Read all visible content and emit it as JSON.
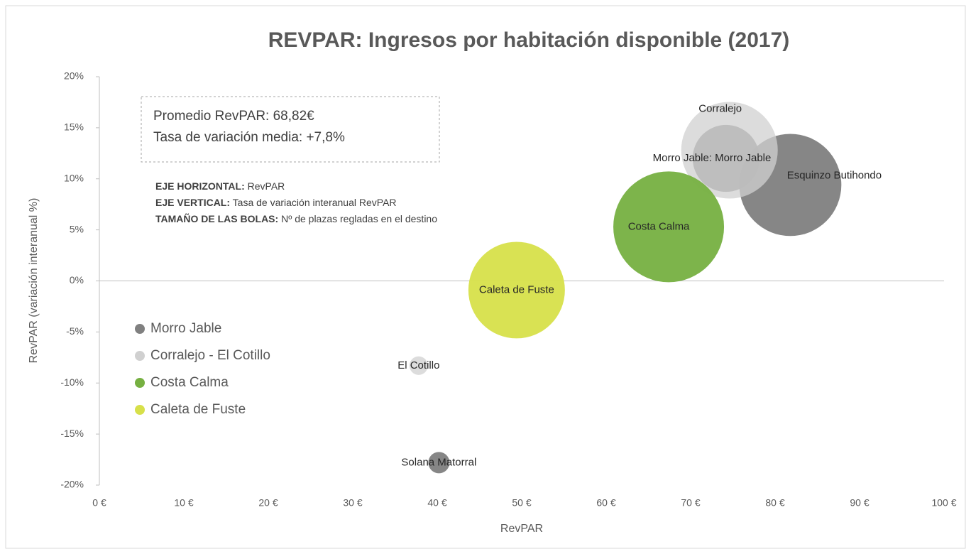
{
  "chart_data": {
    "type": "bubble",
    "title": "REVPAR: Ingresos por habitación disponible (2017)",
    "x_label": "RevPAR",
    "y_label": "RevPAR (variación interanual %)",
    "annotations": [
      "Promedio RevPAR: 68,82€",
      "Tasa de variación media: +7,8%"
    ],
    "notes": [
      {
        "label": "EJE HORIZONTAL:",
        "text": " RevPAR"
      },
      {
        "label": "EJE VERTICAL:",
        "text": " Tasa de variación interanual RevPAR"
      },
      {
        "label": "TAMAÑO DE LAS BOLAS:",
        "text": " Nº de plazas regladas en el destino"
      }
    ],
    "xlim": [
      0,
      100
    ],
    "xticks": [
      {
        "value": 0,
        "label": "0 €"
      },
      {
        "value": 10,
        "label": "10 €"
      },
      {
        "value": 20,
        "label": "20 €"
      },
      {
        "value": 30,
        "label": "30 €"
      },
      {
        "value": 40,
        "label": "40 €"
      },
      {
        "value": 50,
        "label": "50 €"
      },
      {
        "value": 60,
        "label": "60 €"
      },
      {
        "value": 70,
        "label": "70 €"
      },
      {
        "value": 80,
        "label": "80 €"
      },
      {
        "value": 90,
        "label": "90 €"
      },
      {
        "value": 100,
        "label": "100 €"
      }
    ],
    "ylim": [
      -20,
      20
    ],
    "yticks": [
      {
        "value": 20,
        "label": "20%"
      },
      {
        "value": 15,
        "label": "15%"
      },
      {
        "value": 10,
        "label": "10%"
      },
      {
        "value": 5,
        "label": "5%"
      },
      {
        "value": 0,
        "label": "0%"
      },
      {
        "value": -5,
        "label": "-5%"
      },
      {
        "value": -10,
        "label": "-10%"
      },
      {
        "value": -15,
        "label": "-15%"
      },
      {
        "value": -20,
        "label": "-20%"
      }
    ],
    "legend": "left",
    "series": [
      {
        "name": "Morro Jable",
        "color": "#808080",
        "labels": [
          "Morro Jable: Morro Jable",
          "Esquinzo Butihondo",
          "Solana Matorral"
        ],
        "x": [
          74.2,
          81.8,
          40.2
        ],
        "values": [
          12.0,
          9.4,
          -17.8
        ],
        "sizes": [
          7300,
          17000,
          740
        ]
      },
      {
        "name": "Corralejo - El Cotillo",
        "color": "#d0d0d0",
        "labels": [
          "Corralejo",
          "El Cotillo"
        ],
        "x": [
          74.6,
          37.8
        ],
        "values": [
          12.8,
          -8.3
        ],
        "sizes": [
          15200,
          560
        ]
      },
      {
        "name": "Costa Calma",
        "color": "#76b041",
        "labels": [
          "Costa Calma"
        ],
        "x": [
          67.4
        ],
        "values": [
          5.3
        ],
        "sizes": [
          20000
        ]
      },
      {
        "name": "Caleta de Fuste",
        "color": "#d7e04a",
        "labels": [
          "Caleta de Fuste"
        ],
        "x": [
          49.4
        ],
        "values": [
          -0.9
        ],
        "sizes": [
          15200
        ]
      }
    ]
  }
}
